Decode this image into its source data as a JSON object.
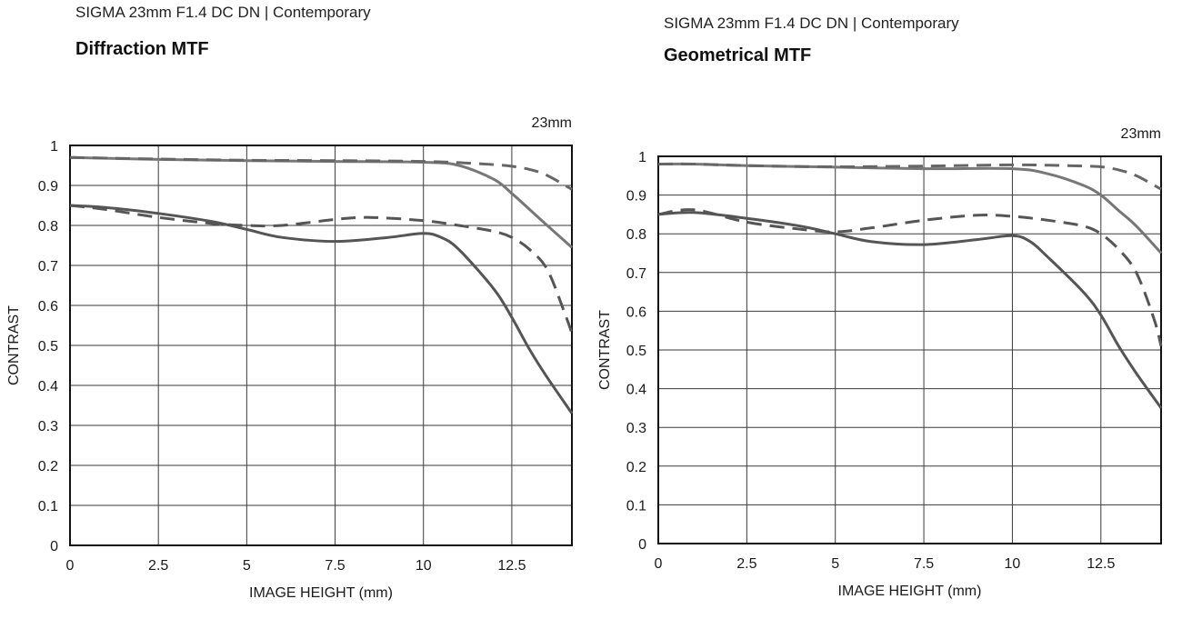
{
  "chart_data": [
    {
      "type": "line",
      "subtitle": "SIGMA 23mm F1.4 DC DN | Contemporary",
      "title": "Diffraction MTF",
      "focal_label": "23mm",
      "xlabel": "IMAGE HEIGHT (mm)",
      "ylabel": "CONTRAST",
      "xlim": [
        0,
        14.2
      ],
      "ylim": [
        0,
        1
      ],
      "x_ticks": [
        0,
        2.5,
        5,
        7.5,
        10,
        12.5
      ],
      "x_tick_labels": [
        "0",
        "2.5",
        "5",
        "7.5",
        "10",
        "12.5"
      ],
      "y_ticks": [
        0,
        0.1,
        0.2,
        0.3,
        0.4,
        0.5,
        0.6,
        0.7,
        0.8,
        0.9,
        1
      ],
      "y_tick_labels": [
        "0",
        "0.1",
        "0.2",
        "0.3",
        "0.4",
        "0.5",
        "0.6",
        "0.7",
        "0.8",
        "0.9",
        "1"
      ],
      "grid": true,
      "series": [
        {
          "style": "solid",
          "color": "#777777",
          "x": [
            0,
            2.5,
            5,
            7.5,
            10,
            11,
            12,
            12.5,
            13,
            13.5,
            14.2
          ],
          "y": [
            0.97,
            0.965,
            0.962,
            0.96,
            0.958,
            0.95,
            0.915,
            0.88,
            0.84,
            0.8,
            0.745
          ]
        },
        {
          "style": "dashed",
          "color": "#666666",
          "x": [
            0,
            2.5,
            5,
            7.5,
            10,
            11,
            12,
            12.5,
            13,
            13.5,
            14.2
          ],
          "y": [
            0.97,
            0.966,
            0.963,
            0.962,
            0.96,
            0.957,
            0.952,
            0.948,
            0.94,
            0.925,
            0.89
          ]
        },
        {
          "style": "solid",
          "color": "#555555",
          "x": [
            0,
            1,
            2.5,
            4,
            5,
            6,
            7.5,
            9,
            10,
            10.5,
            11,
            12,
            12.5,
            13,
            13.5,
            14.2
          ],
          "y": [
            0.85,
            0.845,
            0.83,
            0.81,
            0.79,
            0.77,
            0.76,
            0.77,
            0.78,
            0.77,
            0.74,
            0.64,
            0.57,
            0.49,
            0.42,
            0.33
          ]
        },
        {
          "style": "dashed",
          "color": "#555555",
          "x": [
            0,
            1,
            2.5,
            4,
            5,
            6,
            7.5,
            8.5,
            10,
            11,
            12,
            12.5,
            13,
            13.5,
            14,
            14.2
          ],
          "y": [
            0.85,
            0.84,
            0.82,
            0.805,
            0.8,
            0.8,
            0.815,
            0.82,
            0.812,
            0.8,
            0.785,
            0.77,
            0.74,
            0.69,
            0.58,
            0.53
          ]
        }
      ]
    },
    {
      "type": "line",
      "subtitle": "SIGMA 23mm F1.4 DC DN | Contemporary",
      "title": "Geometrical MTF",
      "focal_label": "23mm",
      "xlabel": "IMAGE HEIGHT (mm)",
      "ylabel": "CONTRAST",
      "xlim": [
        0,
        14.2
      ],
      "ylim": [
        0,
        1
      ],
      "x_ticks": [
        0,
        2.5,
        5,
        7.5,
        10,
        12.5
      ],
      "x_tick_labels": [
        "0",
        "2.5",
        "5",
        "7.5",
        "10",
        "12.5"
      ],
      "y_ticks": [
        0,
        0.1,
        0.2,
        0.3,
        0.4,
        0.5,
        0.6,
        0.7,
        0.8,
        0.9,
        1
      ],
      "y_tick_labels": [
        "0",
        "0.1",
        "0.2",
        "0.3",
        "0.4",
        "0.5",
        "0.6",
        "0.7",
        "0.8",
        "0.9",
        "1"
      ],
      "grid": true,
      "series": [
        {
          "style": "solid",
          "color": "#777777",
          "x": [
            0,
            1,
            2.5,
            5,
            7.5,
            10,
            11,
            12,
            12.5,
            13,
            13.5,
            14.2
          ],
          "y": [
            0.98,
            0.98,
            0.976,
            0.972,
            0.968,
            0.968,
            0.955,
            0.925,
            0.9,
            0.86,
            0.82,
            0.75
          ]
        },
        {
          "style": "dashed",
          "color": "#666666",
          "x": [
            0,
            1,
            2.5,
            5,
            7.5,
            10,
            11,
            12,
            12.5,
            13,
            13.5,
            14.2
          ],
          "y": [
            0.98,
            0.98,
            0.976,
            0.973,
            0.975,
            0.978,
            0.977,
            0.975,
            0.973,
            0.965,
            0.95,
            0.915
          ]
        },
        {
          "style": "solid",
          "color": "#555555",
          "x": [
            0,
            1,
            2.5,
            4,
            5,
            6,
            7.5,
            9,
            10,
            10.5,
            11,
            12,
            12.5,
            13,
            13.5,
            14.2
          ],
          "y": [
            0.85,
            0.855,
            0.84,
            0.82,
            0.8,
            0.78,
            0.772,
            0.785,
            0.795,
            0.78,
            0.74,
            0.65,
            0.59,
            0.51,
            0.44,
            0.35
          ]
        },
        {
          "style": "dashed",
          "color": "#555555",
          "x": [
            0,
            1,
            2.5,
            4,
            5,
            6,
            7.5,
            9,
            10,
            11,
            12,
            12.5,
            13,
            13.5,
            14,
            14.2
          ],
          "y": [
            0.85,
            0.862,
            0.83,
            0.812,
            0.805,
            0.815,
            0.835,
            0.848,
            0.845,
            0.835,
            0.82,
            0.8,
            0.76,
            0.7,
            0.58,
            0.51
          ]
        }
      ]
    }
  ]
}
